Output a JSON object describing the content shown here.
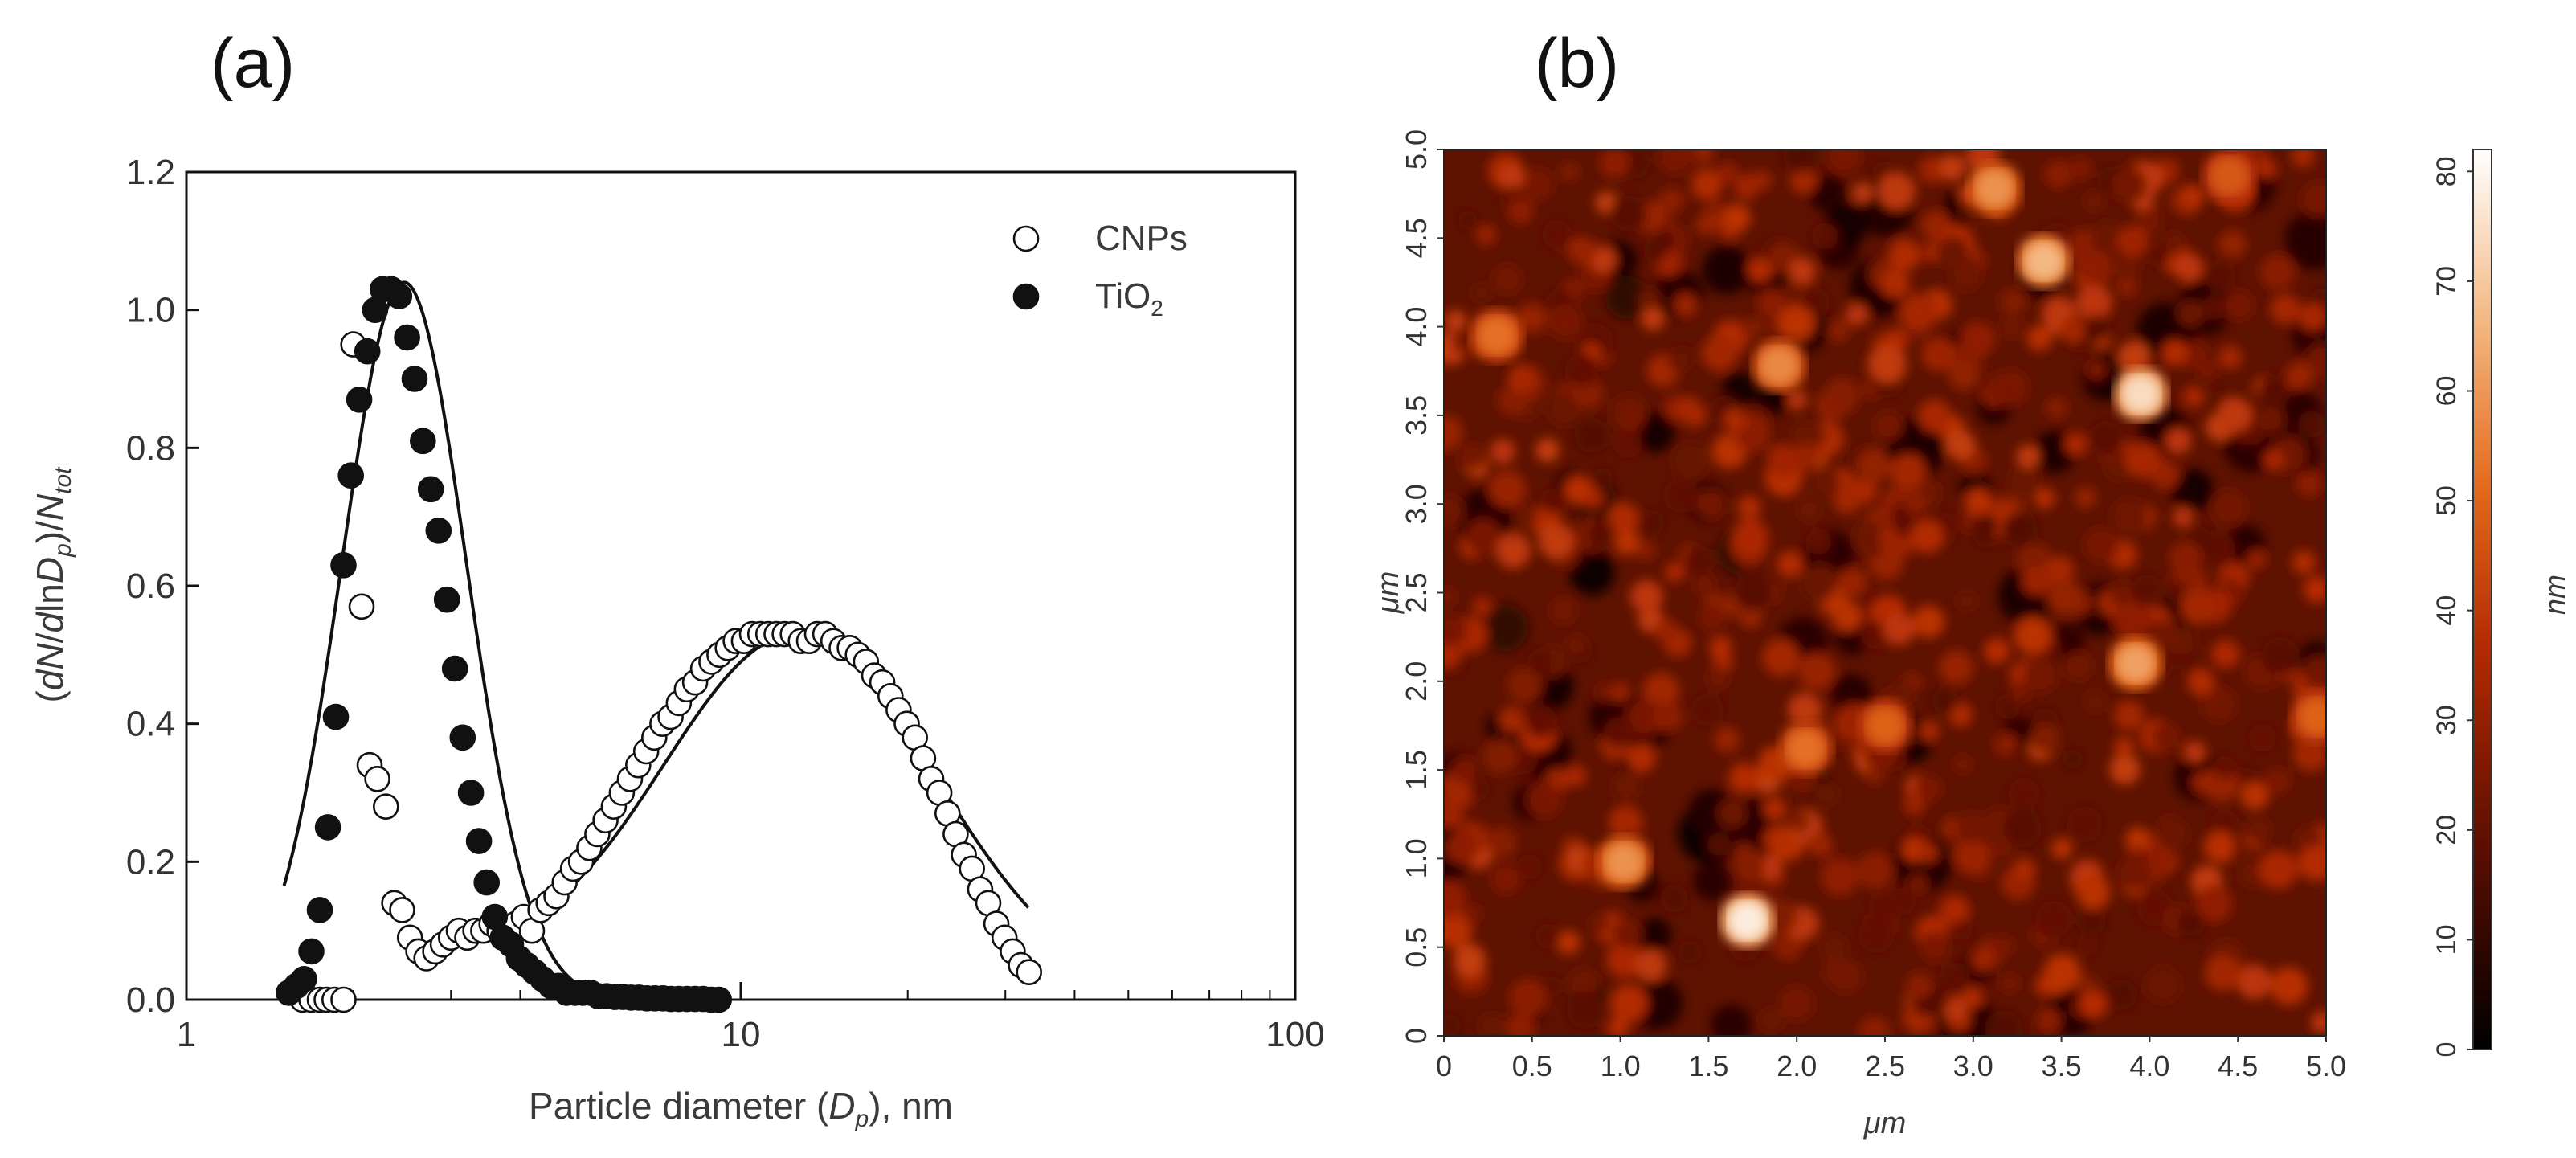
{
  "panel_labels": {
    "a": "(a)",
    "b": "(b)"
  },
  "chart_data": [
    {
      "type": "scatter",
      "xscale": "log",
      "xlim": [
        1,
        100
      ],
      "ylim": [
        0,
        1.2
      ],
      "xlabel": {
        "before": "Particle diameter (",
        "var": "D",
        "sub": "p",
        "after": "), nm"
      },
      "ylabel": {
        "p1": "(",
        "dN": "dN",
        "slash1": "/",
        "d": "d",
        "ln": "ln",
        "D": "D",
        "p": "p",
        "p2": ")/",
        "N": "N",
        "tot": "tot"
      },
      "x_ticks": [
        {
          "value": 1,
          "label": "1"
        },
        {
          "value": 10,
          "label": "10"
        },
        {
          "value": 100,
          "label": "100"
        }
      ],
      "y_ticks": [
        {
          "value": 0.0,
          "label": "0.0"
        },
        {
          "value": 0.2,
          "label": "0.2"
        },
        {
          "value": 0.4,
          "label": "0.4"
        },
        {
          "value": 0.6,
          "label": "0.6"
        },
        {
          "value": 0.8,
          "label": "0.8"
        },
        {
          "value": 1.0,
          "label": "1.0"
        },
        {
          "value": 1.2,
          "label": "1.2"
        }
      ],
      "legend": {
        "position": "top-right",
        "cnps": "CNPs",
        "tio2_main": "TiO",
        "tio2_sub": "2"
      },
      "series": [
        {
          "name": "CNPs",
          "marker": "open-circle",
          "x": [
            1.62,
            1.68,
            1.74,
            1.79,
            1.85,
            1.92,
            2.0,
            2.07,
            2.14,
            2.21,
            2.29,
            2.37,
            2.45,
            2.53,
            2.62,
            2.71,
            2.81,
            2.9,
            3.0,
            3.1,
            3.21,
            3.32,
            3.43,
            3.55,
            3.67,
            3.8,
            3.93,
            4.06,
            4.2,
            4.35,
            4.5,
            4.65,
            4.81,
            4.98,
            5.15,
            5.33,
            5.51,
            5.7,
            5.9,
            6.1,
            6.31,
            6.53,
            6.75,
            6.98,
            7.22,
            7.47,
            7.73,
            7.99,
            8.27,
            8.55,
            8.85,
            9.15,
            9.47,
            9.79,
            10.13,
            10.48,
            10.84,
            11.21,
            11.6,
            12.0,
            12.41,
            12.83,
            13.28,
            13.73,
            14.2,
            14.69,
            15.2,
            15.72,
            16.26,
            16.82,
            17.4,
            18.0,
            18.62,
            19.26,
            19.92,
            20.61,
            21.32,
            22.05,
            22.81,
            23.6,
            24.41,
            25.25,
            26.12,
            27.02,
            27.95,
            28.91,
            29.9,
            30.93,
            32.0,
            33.1
          ],
          "y": [
            0.0,
            0.0,
            0.0,
            0.0,
            0.0,
            0.0,
            0.95,
            0.57,
            0.34,
            0.32,
            0.28,
            0.14,
            0.13,
            0.09,
            0.07,
            0.06,
            0.07,
            0.08,
            0.09,
            0.1,
            0.09,
            0.1,
            0.1,
            0.11,
            0.1,
            0.1,
            0.11,
            0.12,
            0.1,
            0.13,
            0.14,
            0.15,
            0.17,
            0.19,
            0.2,
            0.22,
            0.24,
            0.26,
            0.28,
            0.3,
            0.32,
            0.34,
            0.36,
            0.38,
            0.4,
            0.41,
            0.43,
            0.45,
            0.46,
            0.48,
            0.49,
            0.5,
            0.51,
            0.52,
            0.52,
            0.53,
            0.53,
            0.53,
            0.53,
            0.53,
            0.53,
            0.52,
            0.52,
            0.53,
            0.53,
            0.52,
            0.51,
            0.51,
            0.5,
            0.49,
            0.47,
            0.46,
            0.44,
            0.42,
            0.4,
            0.38,
            0.35,
            0.32,
            0.3,
            0.27,
            0.24,
            0.21,
            0.19,
            0.16,
            0.14,
            0.11,
            0.09,
            0.07,
            0.05,
            0.04
          ]
        },
        {
          "name": "TiO2",
          "marker": "filled-circle",
          "x": [
            1.53,
            1.58,
            1.63,
            1.68,
            1.74,
            1.8,
            1.86,
            1.92,
            1.98,
            2.05,
            2.12,
            2.19,
            2.26,
            2.34,
            2.42,
            2.5,
            2.58,
            2.67,
            2.76,
            2.85,
            2.95,
            3.05,
            3.15,
            3.26,
            3.37,
            3.48,
            3.6,
            3.72,
            3.85,
            3.98,
            4.11,
            4.25,
            4.39,
            4.54,
            4.69,
            4.85,
            5.02,
            5.19,
            5.36,
            5.54,
            5.73,
            5.93,
            6.13,
            6.34,
            6.55,
            6.77,
            7.0,
            7.24,
            7.48,
            7.73,
            8.0,
            8.27,
            8.55,
            8.84,
            9.13
          ],
          "y": [
            0.01,
            0.02,
            0.03,
            0.07,
            0.13,
            0.25,
            0.41,
            0.63,
            0.76,
            0.87,
            0.94,
            1.0,
            1.03,
            1.03,
            1.02,
            0.96,
            0.9,
            0.81,
            0.74,
            0.68,
            0.58,
            0.48,
            0.38,
            0.3,
            0.23,
            0.17,
            0.12,
            0.09,
            0.08,
            0.06,
            0.05,
            0.04,
            0.03,
            0.02,
            0.02,
            0.01,
            0.01,
            0.01,
            0.01,
            0.005,
            0.005,
            0.004,
            0.004,
            0.003,
            0.003,
            0.002,
            0.002,
            0.002,
            0.001,
            0.001,
            0.001,
            0.001,
            0.001,
            0.0,
            0.0
          ]
        }
      ],
      "fits": [
        {
          "name": "TiO2 fit",
          "x_range": [
            1.5,
            7.2
          ]
        },
        {
          "name": "CNPs fit",
          "x_range": [
            2.8,
            33
          ]
        }
      ]
    },
    {
      "type": "heatmap",
      "xlabel": "μm",
      "ylabel": "μm",
      "xlim": [
        0,
        5.0
      ],
      "ylim": [
        0,
        5.0
      ],
      "x_ticks": [
        "0",
        "0.5",
        "1.0",
        "1.5",
        "2.0",
        "2.5",
        "3.0",
        "3.5",
        "4.0",
        "4.5",
        "5.0"
      ],
      "y_ticks": [
        "0",
        "0.5",
        "1.0",
        "1.5",
        "2.0",
        "2.5",
        "3.0",
        "3.5",
        "4.0",
        "4.5",
        "5.0"
      ],
      "colorbar": {
        "label": "nm",
        "range": [
          0,
          82
        ],
        "ticks": [
          "0",
          "10",
          "20",
          "30",
          "40",
          "50",
          "60",
          "70",
          "80"
        ]
      },
      "bright_particles": [
        {
          "x": 1.72,
          "y": 0.65,
          "h": 82
        },
        {
          "x": 3.95,
          "y": 3.62,
          "h": 78
        },
        {
          "x": 3.4,
          "y": 4.37,
          "h": 70
        },
        {
          "x": 3.12,
          "y": 4.78,
          "h": 62
        },
        {
          "x": 3.92,
          "y": 2.1,
          "h": 65
        },
        {
          "x": 1.9,
          "y": 3.78,
          "h": 60
        },
        {
          "x": 1.02,
          "y": 0.98,
          "h": 62
        },
        {
          "x": 0.3,
          "y": 3.95,
          "h": 55
        },
        {
          "x": 2.05,
          "y": 1.62,
          "h": 55
        },
        {
          "x": 4.95,
          "y": 1.8,
          "h": 52
        },
        {
          "x": 2.5,
          "y": 1.75,
          "h": 52
        },
        {
          "x": 4.45,
          "y": 4.85,
          "h": 50
        }
      ]
    }
  ]
}
